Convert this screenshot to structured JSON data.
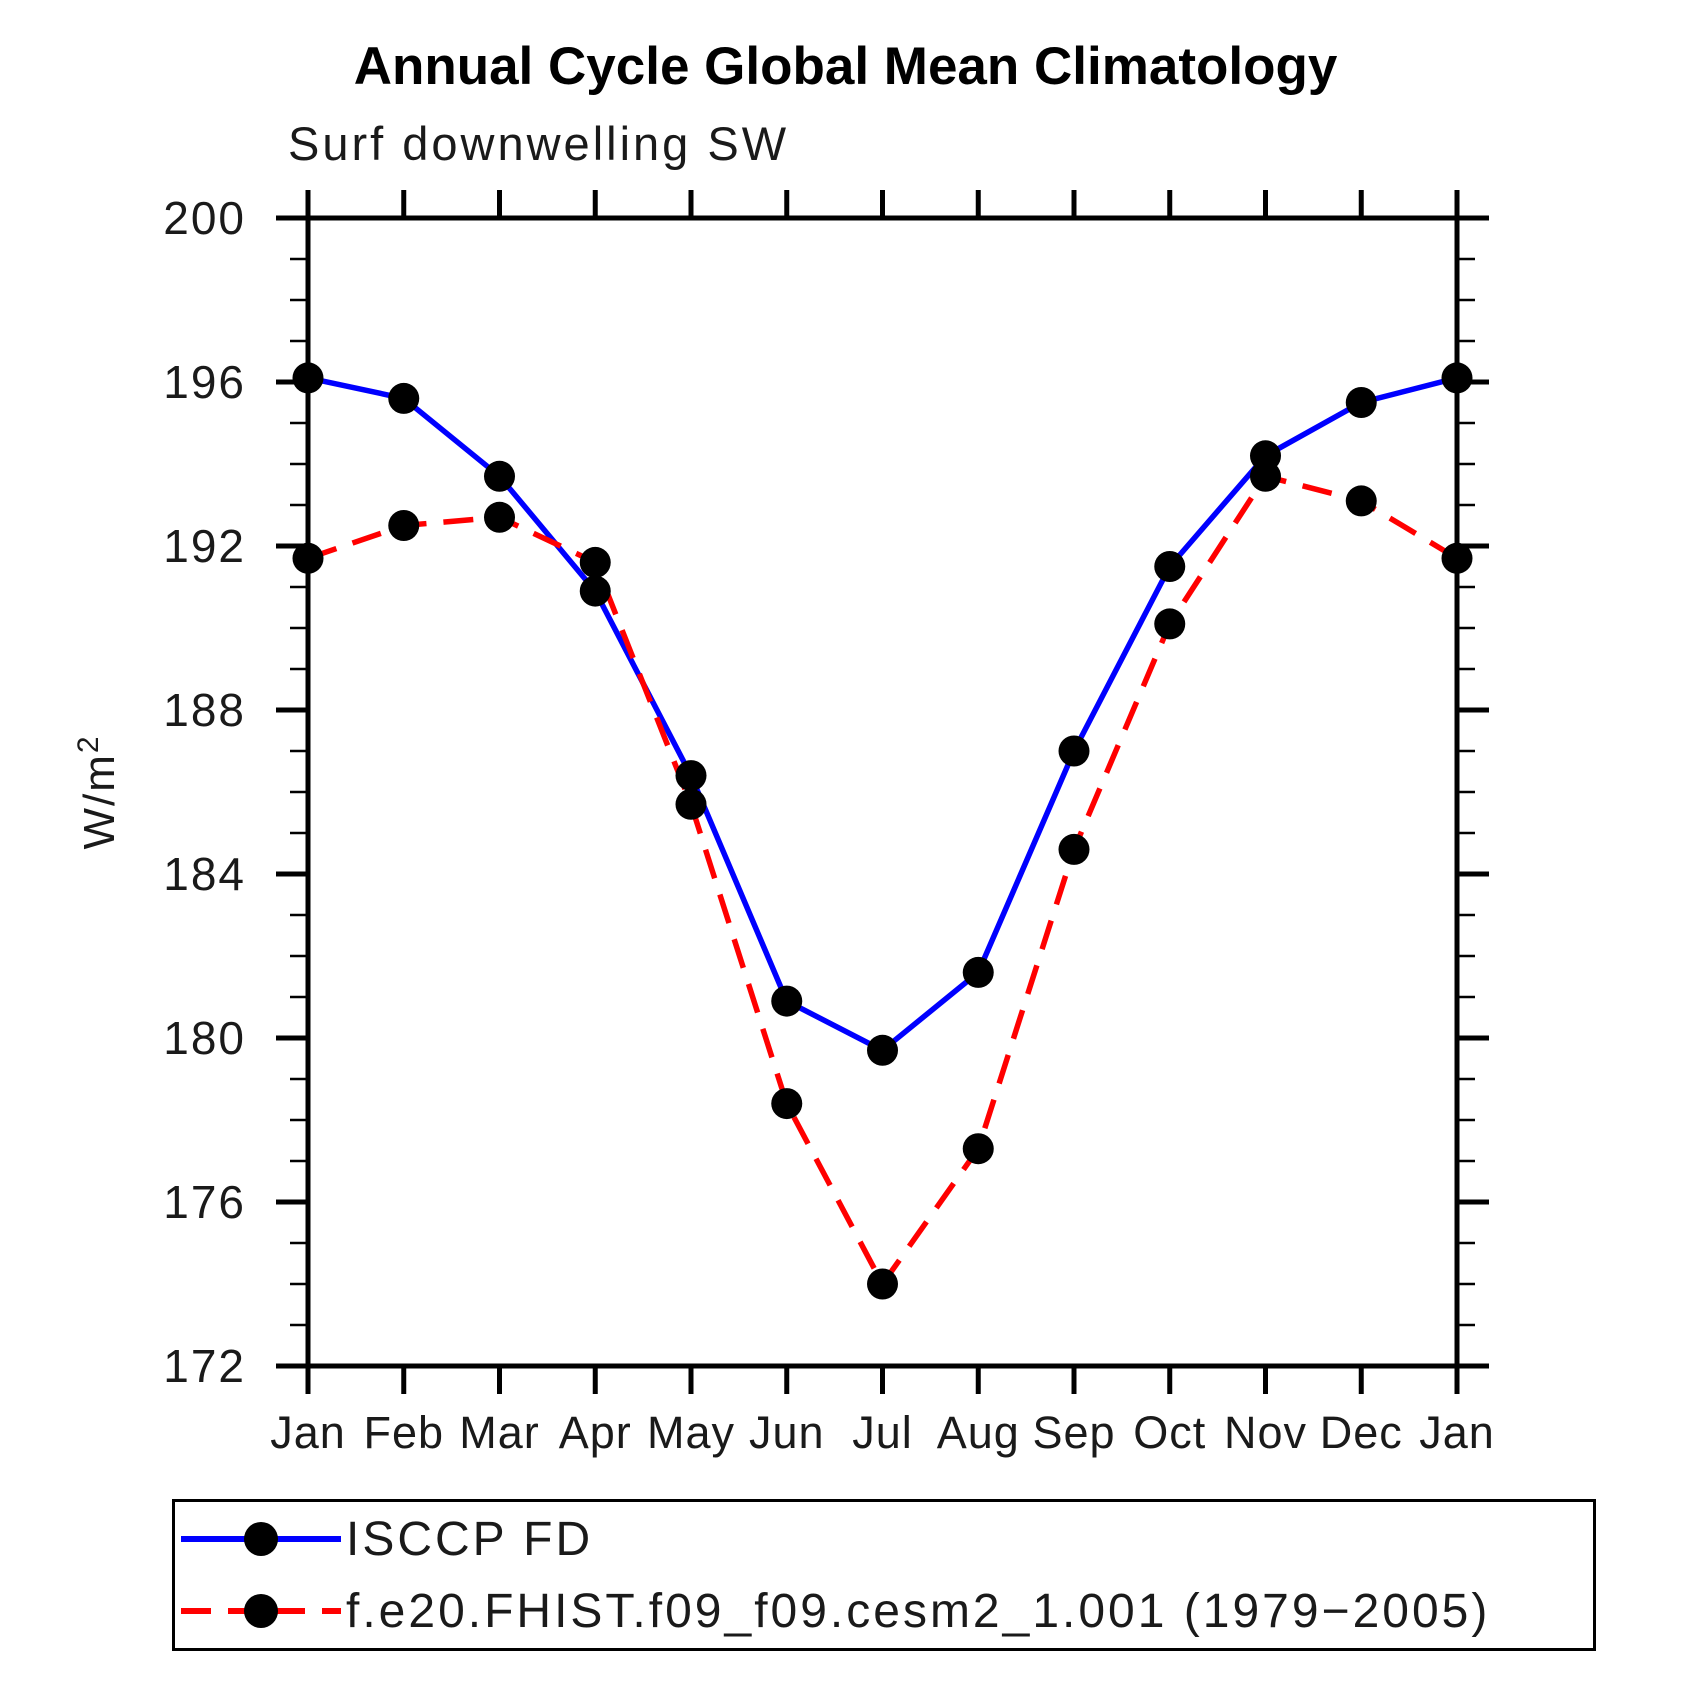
{
  "title": "Annual Cycle Global Mean Climatology",
  "subtitle": "Surf downwelling SW",
  "colors": {
    "obs_line": "#0000ff",
    "model_line": "#ff0000",
    "marker": "#000000",
    "axis": "#000000",
    "label_text": "#1a1a1a"
  },
  "chart_data": {
    "type": "line",
    "title": "Annual Cycle Global Mean Climatology",
    "subtitle": "Surf downwelling SW",
    "ylabel": "W/m",
    "ylabel_superscript": "2",
    "x_categories": [
      "Jan",
      "Feb",
      "Mar",
      "Apr",
      "May",
      "Jun",
      "Jul",
      "Aug",
      "Sep",
      "Oct",
      "Nov",
      "Dec",
      "Jan"
    ],
    "ylim": [
      172,
      200
    ],
    "ytick_major": [
      172,
      176,
      180,
      184,
      188,
      192,
      196,
      200
    ],
    "ytick_labels": [
      "172",
      "176",
      "180",
      "184",
      "188",
      "192",
      "196",
      "200"
    ],
    "ytick_minor_step": 1,
    "grid": false,
    "legend_position": "bottom",
    "series": [
      {
        "name": "ISCCP FD",
        "style": "solid",
        "color": "#0000ff",
        "marker": "black-dot",
        "values": [
          196.1,
          195.6,
          193.7,
          190.9,
          186.4,
          180.9,
          179.7,
          181.6,
          187.0,
          191.5,
          194.2,
          195.5,
          196.1
        ]
      },
      {
        "name": "f.e20.FHIST.f09_f09.cesm2_1.001 (1979−2005)",
        "style": "dashed",
        "color": "#ff0000",
        "marker": "black-dot",
        "values": [
          191.7,
          192.5,
          192.7,
          191.6,
          185.7,
          178.4,
          174.0,
          177.3,
          184.6,
          190.1,
          193.7,
          193.1,
          191.7
        ]
      }
    ]
  }
}
